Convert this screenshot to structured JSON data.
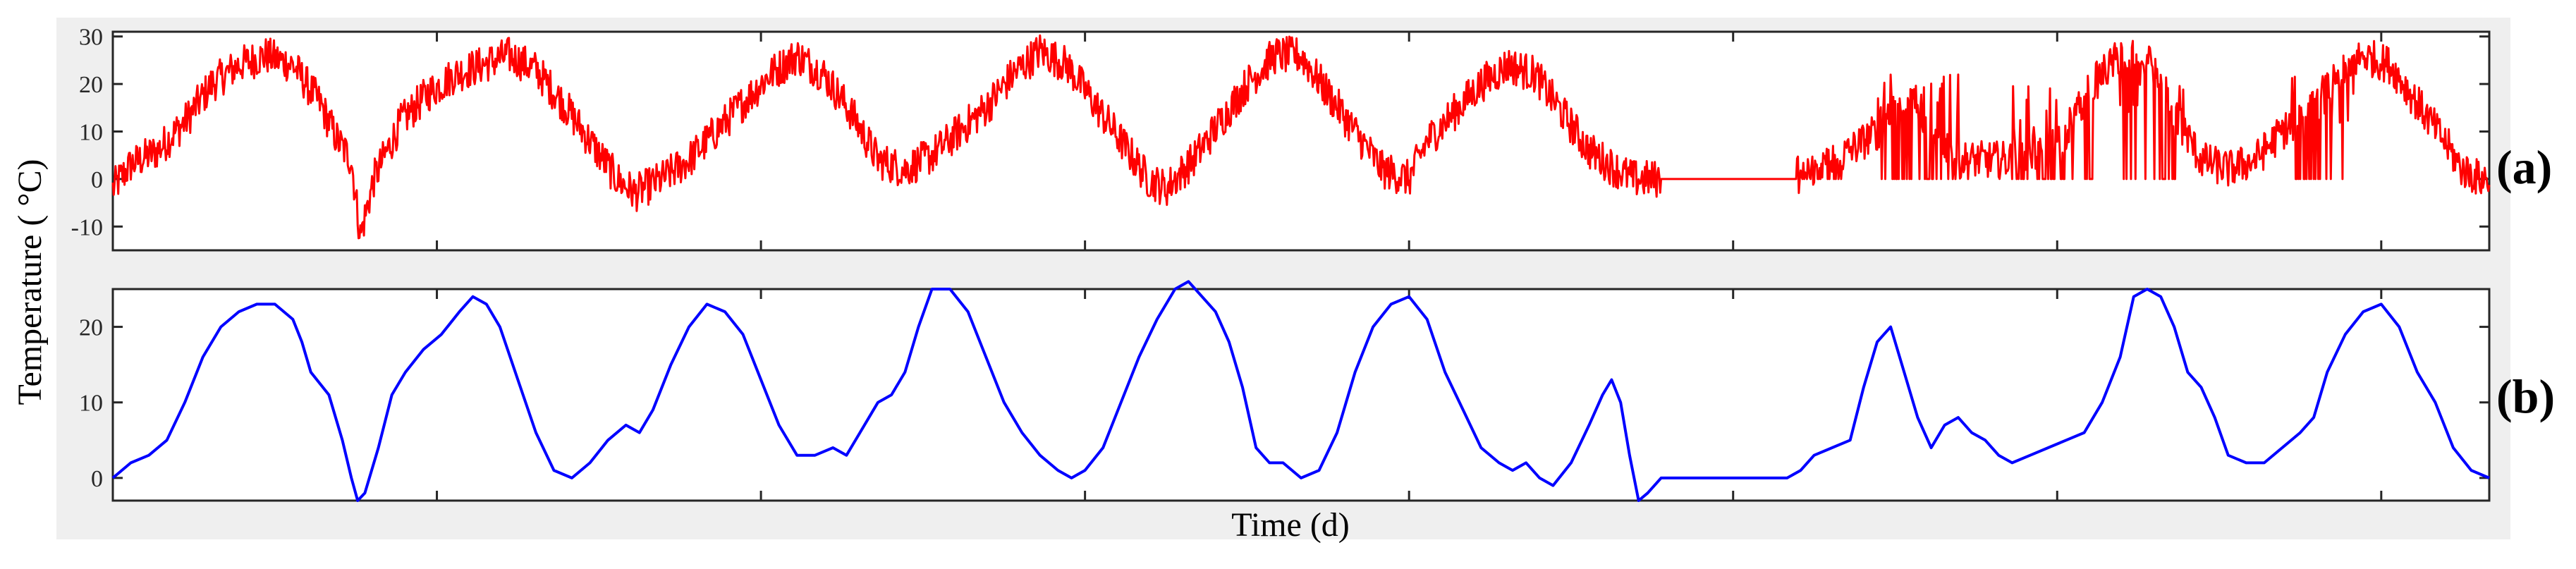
{
  "figure": {
    "ylabel": "Temperature ( °C)",
    "xlabel": "Time (d)",
    "colors": {
      "background": "#efefef",
      "axes_bg": "#ffffff",
      "axes_edge": "#262626",
      "series_a": "#ff0000",
      "series_b": "#0000ff"
    }
  },
  "chart_data": [
    {
      "type": "line",
      "panel_label": "(a)",
      "xlabel": "",
      "ylabel": "",
      "ylim": [
        -15,
        31
      ],
      "xlim": [
        0,
        2640
      ],
      "yticks": [
        -10,
        0,
        10,
        20,
        30
      ],
      "xticks": [
        0,
        360,
        720,
        1080,
        1440,
        1800,
        2160,
        2520
      ],
      "xtick_labels_shown": false,
      "grid": false,
      "legend": "none",
      "color": "#ff0000",
      "series": [
        {
          "anchors": [
            [
              0,
              -2
            ],
            [
              20,
              3
            ],
            [
              50,
              6
            ],
            [
              80,
              12
            ],
            [
              110,
              20
            ],
            [
              140,
              24
            ],
            [
              170,
              26
            ],
            [
              200,
              24
            ],
            [
              230,
              16
            ],
            [
              250,
              8
            ],
            [
              265,
              4
            ],
            [
              275,
              -12
            ],
            [
              290,
              0
            ],
            [
              320,
              12
            ],
            [
              350,
              18
            ],
            [
              380,
              22
            ],
            [
              410,
              24
            ],
            [
              440,
              26
            ],
            [
              470,
              23
            ],
            [
              500,
              16
            ],
            [
              530,
              8
            ],
            [
              560,
              0
            ],
            [
              580,
              -3
            ],
            [
              610,
              0
            ],
            [
              640,
              4
            ],
            [
              670,
              10
            ],
            [
              700,
              16
            ],
            [
              730,
              22
            ],
            [
              760,
              26
            ],
            [
              790,
              22
            ],
            [
              820,
              14
            ],
            [
              850,
              4
            ],
            [
              880,
              2
            ],
            [
              910,
              5
            ],
            [
              940,
              10
            ],
            [
              970,
              15
            ],
            [
              1000,
              22
            ],
            [
              1030,
              27
            ],
            [
              1060,
              24
            ],
            [
              1090,
              16
            ],
            [
              1120,
              8
            ],
            [
              1150,
              0
            ],
            [
              1170,
              -2
            ],
            [
              1200,
              4
            ],
            [
              1230,
              12
            ],
            [
              1260,
              20
            ],
            [
              1290,
              26
            ],
            [
              1320,
              26
            ],
            [
              1350,
              18
            ],
            [
              1380,
              10
            ],
            [
              1410,
              2
            ],
            [
              1440,
              0
            ],
            [
              1460,
              8
            ],
            [
              1490,
              14
            ],
            [
              1520,
              20
            ],
            [
              1550,
              24
            ],
            [
              1580,
              22
            ],
            [
              1610,
              14
            ],
            [
              1640,
              6
            ],
            [
              1670,
              2
            ],
            [
              1690,
              0
            ],
            [
              1700,
              0
            ],
            [
              1850,
              0
            ],
            [
              1880,
              0
            ],
            [
              1900,
              2
            ],
            [
              1930,
              6
            ],
            [
              1960,
              10
            ],
            [
              1990,
              18
            ],
            [
              2020,
              12
            ],
            [
              2050,
              4
            ],
            [
              2080,
              4
            ],
            [
              2110,
              4
            ],
            [
              2140,
              6
            ],
            [
              2170,
              10
            ],
            [
              2200,
              20
            ],
            [
              2230,
              26
            ],
            [
              2260,
              26
            ],
            [
              2290,
              14
            ],
            [
              2320,
              4
            ],
            [
              2350,
              2
            ],
            [
              2380,
              4
            ],
            [
              2410,
              10
            ],
            [
              2440,
              14
            ],
            [
              2470,
              22
            ],
            [
              2500,
              26
            ],
            [
              2530,
              24
            ],
            [
              2560,
              16
            ],
            [
              2590,
              8
            ],
            [
              2610,
              2
            ],
            [
              2630,
              0
            ],
            [
              2640,
              0
            ]
          ],
          "flat_segments": [
            [
              1720,
              1870
            ]
          ],
          "spike_windows": [
            {
              "from": 1720,
              "to": 1760,
              "peak": 12
            },
            {
              "from": 1765,
              "to": 1785,
              "peak": 25
            },
            {
              "from": 1870,
              "to": 1920,
              "peak": 5
            },
            {
              "from": 1960,
              "to": 2050,
              "peak": 22
            },
            {
              "from": 2035,
              "to": 2045,
              "peak": 30
            },
            {
              "from": 2110,
              "to": 2200,
              "peak": 20
            },
            {
              "from": 2230,
              "to": 2300,
              "peak": 25
            },
            {
              "from": 2420,
              "to": 2490,
              "peak": 22
            }
          ],
          "noise_amplitude": 4
        }
      ]
    },
    {
      "type": "line",
      "panel_label": "(b)",
      "xlabel": "",
      "ylabel": "",
      "ylim": [
        -3,
        25
      ],
      "xlim": [
        0,
        2640
      ],
      "yticks": [
        0,
        10,
        20
      ],
      "xticks": [
        0,
        360,
        720,
        1080,
        1440,
        1800,
        2160,
        2520
      ],
      "xtick_labels_shown": false,
      "grid": false,
      "legend": "none",
      "color": "#0000ff",
      "series": [
        {
          "points": [
            [
              0,
              0
            ],
            [
              20,
              2
            ],
            [
              40,
              3
            ],
            [
              60,
              5
            ],
            [
              80,
              10
            ],
            [
              100,
              16
            ],
            [
              120,
              20
            ],
            [
              140,
              22
            ],
            [
              160,
              23
            ],
            [
              180,
              23
            ],
            [
              200,
              21
            ],
            [
              210,
              18
            ],
            [
              220,
              14
            ],
            [
              240,
              11
            ],
            [
              255,
              5
            ],
            [
              265,
              0
            ],
            [
              272,
              -3
            ],
            [
              280,
              -2
            ],
            [
              295,
              4
            ],
            [
              310,
              11
            ],
            [
              325,
              14
            ],
            [
              345,
              17
            ],
            [
              365,
              19
            ],
            [
              385,
              22
            ],
            [
              400,
              24
            ],
            [
              415,
              23
            ],
            [
              430,
              20
            ],
            [
              450,
              13
            ],
            [
              470,
              6
            ],
            [
              490,
              1
            ],
            [
              510,
              0
            ],
            [
              530,
              2
            ],
            [
              550,
              5
            ],
            [
              570,
              7
            ],
            [
              585,
              6
            ],
            [
              600,
              9
            ],
            [
              620,
              15
            ],
            [
              640,
              20
            ],
            [
              660,
              23
            ],
            [
              680,
              22
            ],
            [
              700,
              19
            ],
            [
              720,
              13
            ],
            [
              740,
              7
            ],
            [
              760,
              3
            ],
            [
              780,
              3
            ],
            [
              800,
              4
            ],
            [
              815,
              3
            ],
            [
              830,
              6
            ],
            [
              850,
              10
            ],
            [
              865,
              11
            ],
            [
              880,
              14
            ],
            [
              895,
              20
            ],
            [
              910,
              25
            ],
            [
              930,
              25
            ],
            [
              950,
              22
            ],
            [
              970,
              16
            ],
            [
              990,
              10
            ],
            [
              1010,
              6
            ],
            [
              1030,
              3
            ],
            [
              1050,
              1
            ],
            [
              1065,
              0
            ],
            [
              1080,
              1
            ],
            [
              1100,
              4
            ],
            [
              1120,
              10
            ],
            [
              1140,
              16
            ],
            [
              1160,
              21
            ],
            [
              1180,
              25
            ],
            [
              1195,
              26
            ],
            [
              1210,
              24
            ],
            [
              1225,
              22
            ],
            [
              1240,
              18
            ],
            [
              1255,
              12
            ],
            [
              1270,
              4
            ],
            [
              1285,
              2
            ],
            [
              1300,
              2
            ],
            [
              1320,
              0
            ],
            [
              1340,
              1
            ],
            [
              1360,
              6
            ],
            [
              1380,
              14
            ],
            [
              1400,
              20
            ],
            [
              1420,
              23
            ],
            [
              1440,
              24
            ],
            [
              1460,
              21
            ],
            [
              1480,
              14
            ],
            [
              1500,
              9
            ],
            [
              1520,
              4
            ],
            [
              1540,
              2
            ],
            [
              1555,
              1
            ],
            [
              1570,
              2
            ],
            [
              1585,
              0
            ],
            [
              1600,
              -1
            ],
            [
              1620,
              2
            ],
            [
              1640,
              7
            ],
            [
              1655,
              11
            ],
            [
              1665,
              13
            ],
            [
              1675,
              10
            ],
            [
              1685,
              3
            ],
            [
              1695,
              -3
            ],
            [
              1705,
              -2
            ],
            [
              1720,
              0
            ],
            [
              1740,
              0
            ],
            [
              1760,
              0
            ],
            [
              1780,
              0
            ],
            [
              1800,
              0
            ],
            [
              1820,
              0
            ],
            [
              1840,
              0
            ],
            [
              1860,
              0
            ],
            [
              1875,
              1
            ],
            [
              1890,
              3
            ],
            [
              1910,
              4
            ],
            [
              1930,
              5
            ],
            [
              1945,
              12
            ],
            [
              1960,
              18
            ],
            [
              1975,
              20
            ],
            [
              1990,
              14
            ],
            [
              2005,
              8
            ],
            [
              2020,
              4
            ],
            [
              2035,
              7
            ],
            [
              2050,
              8
            ],
            [
              2065,
              6
            ],
            [
              2080,
              5
            ],
            [
              2095,
              3
            ],
            [
              2110,
              2
            ],
            [
              2130,
              3
            ],
            [
              2150,
              4
            ],
            [
              2170,
              5
            ],
            [
              2190,
              6
            ],
            [
              2210,
              10
            ],
            [
              2230,
              16
            ],
            [
              2245,
              24
            ],
            [
              2260,
              25
            ],
            [
              2275,
              24
            ],
            [
              2290,
              20
            ],
            [
              2305,
              14
            ],
            [
              2320,
              12
            ],
            [
              2335,
              8
            ],
            [
              2350,
              3
            ],
            [
              2370,
              2
            ],
            [
              2390,
              2
            ],
            [
              2410,
              4
            ],
            [
              2430,
              6
            ],
            [
              2445,
              8
            ],
            [
              2460,
              14
            ],
            [
              2480,
              19
            ],
            [
              2500,
              22
            ],
            [
              2520,
              23
            ],
            [
              2540,
              20
            ],
            [
              2560,
              14
            ],
            [
              2580,
              10
            ],
            [
              2600,
              4
            ],
            [
              2620,
              1
            ],
            [
              2640,
              0
            ]
          ]
        }
      ]
    }
  ]
}
